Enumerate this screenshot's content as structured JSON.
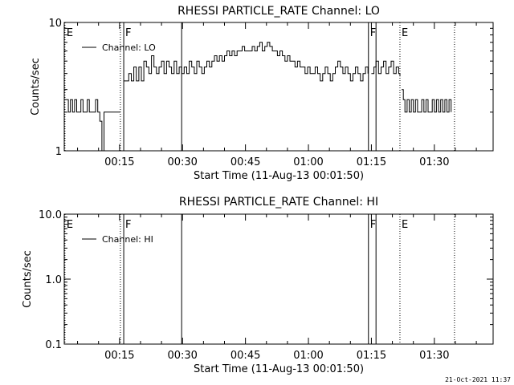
{
  "timestamp": "21-Oct-2021 11:37",
  "chart_data": [
    {
      "type": "line",
      "title": "RHESSI PARTICLE_RATE Channel: LO",
      "xlabel": "Start Time (11-Aug-13 00:01:50)",
      "ylabel": "Counts/sec",
      "yscale": "log",
      "ylim": [
        1,
        10
      ],
      "xlim_minutes": [
        1.83,
        104
      ],
      "xtick_minutes": [
        15,
        30,
        45,
        60,
        75,
        90
      ],
      "xtick_labels": [
        "00:15",
        "00:30",
        "00:45",
        "01:00",
        "01:15",
        "01:30"
      ],
      "ytick_values": [
        1,
        10
      ],
      "ytick_labels": [
        "1",
        "10"
      ],
      "legend": {
        "label": "Channel: LO",
        "position": "top-left"
      },
      "markers": [
        {
          "minute": 2.0,
          "label": "E",
          "style": "dotted"
        },
        {
          "minute": 15.2,
          "label": "",
          "style": "dotted"
        },
        {
          "minute": 16.0,
          "label": "F",
          "style": "solid"
        },
        {
          "minute": 29.8,
          "label": "",
          "style": "solid"
        },
        {
          "minute": 74.3,
          "label": "F",
          "style": "solid"
        },
        {
          "minute": 76.1,
          "label": "",
          "style": "solid"
        },
        {
          "minute": 81.8,
          "label": "E",
          "style": "dotted"
        },
        {
          "minute": 94.8,
          "label": "",
          "style": "dotted"
        }
      ],
      "series": [
        {
          "segments": [
            {
              "x": [
                1.83,
                2.3,
                2.8,
                3.3,
                3.8,
                4.3,
                4.8,
                5.3,
                5.8,
                6.3,
                6.8,
                7.3,
                7.8,
                8.3,
                8.8,
                9.3,
                9.8,
                10.3,
                10.8,
                11.3,
                11.8,
                12.3,
                12.8,
                13.3,
                13.8,
                14.3,
                14.8,
                15.2
              ],
              "y": [
                2.5,
                2.5,
                2.0,
                2.5,
                2.0,
                2.5,
                2.0,
                2.0,
                2.5,
                2.0,
                2.0,
                2.5,
                2.0,
                2.0,
                2.0,
                2.5,
                2.0,
                1.7,
                1.0,
                2.0,
                2.0,
                2.0,
                2.0,
                2.0,
                2.0,
                2.0,
                2.0,
                2.0
              ]
            },
            {
              "x": [
                16.0,
                16.6,
                17.2,
                17.8,
                18.4,
                19.0,
                19.6,
                20.2,
                20.8,
                21.4,
                22.0,
                22.6,
                23.2,
                23.8,
                24.4,
                25.0,
                25.6,
                26.2,
                26.8,
                27.4,
                28.0,
                28.6,
                29.2,
                29.8,
                30.4,
                31.0,
                31.6,
                32.2,
                32.8,
                33.4,
                34.0,
                34.6,
                35.2,
                35.8,
                36.4,
                37.0,
                37.6,
                38.2,
                38.8,
                39.4,
                40.0,
                40.6,
                41.2,
                41.8,
                42.4,
                43.0,
                43.6,
                44.2,
                44.8,
                45.4,
                46.0,
                46.6,
                47.2,
                47.8,
                48.4,
                49.0,
                49.6,
                50.2,
                50.8,
                51.4,
                52.0,
                52.6,
                53.2,
                53.8,
                54.4,
                55.0,
                55.6,
                56.2,
                56.8,
                57.4,
                58.0,
                58.6,
                59.2,
                59.8,
                60.4,
                61.0,
                61.6,
                62.2,
                62.8,
                63.4,
                64.0,
                64.6,
                65.2,
                65.8,
                66.4,
                67.0,
                67.6,
                68.2,
                68.8,
                69.4,
                70.0,
                70.6,
                71.2,
                71.8,
                72.4,
                73.0,
                73.6,
                74.2
              ],
              "y": [
                3.5,
                3.5,
                4.0,
                3.5,
                4.5,
                3.5,
                4.5,
                3.5,
                5.0,
                4.5,
                4.0,
                5.5,
                4.5,
                4.0,
                4.5,
                5.0,
                4.0,
                5.0,
                4.5,
                4.0,
                5.0,
                4.0,
                4.5,
                4.0,
                4.5,
                4.0,
                5.0,
                4.5,
                4.0,
                5.0,
                4.5,
                4.0,
                4.5,
                5.0,
                4.5,
                5.0,
                5.5,
                5.0,
                5.5,
                5.0,
                5.5,
                6.0,
                5.5,
                6.0,
                5.5,
                6.0,
                6.0,
                6.5,
                6.0,
                6.0,
                6.0,
                6.5,
                6.0,
                6.5,
                7.0,
                6.0,
                6.5,
                7.0,
                6.5,
                6.0,
                6.0,
                5.5,
                6.0,
                5.5,
                5.0,
                5.5,
                5.0,
                5.0,
                4.5,
                5.0,
                4.5,
                4.5,
                4.0,
                4.5,
                4.0,
                4.0,
                4.5,
                4.0,
                3.5,
                4.0,
                4.5,
                4.0,
                3.5,
                4.0,
                4.5,
                5.0,
                4.5,
                4.0,
                4.5,
                4.0,
                3.5,
                4.0,
                4.5,
                4.0,
                3.5,
                4.0,
                4.5,
                4.0
              ]
            },
            {
              "x": [
                75.0,
                75.6,
                76.1,
                76.7,
                77.3,
                77.9,
                78.5,
                79.1,
                79.7,
                80.3,
                80.9,
                81.5,
                81.8
              ],
              "y": [
                4.0,
                4.5,
                5.0,
                4.0,
                4.5,
                5.0,
                4.0,
                4.5,
                5.0,
                4.0,
                4.5,
                4.0,
                3.8
              ]
            },
            {
              "x": [
                82.2,
                82.6,
                83.0,
                83.5,
                84.0,
                84.5,
                85.0,
                85.5,
                86.0,
                86.5,
                87.0,
                87.5,
                88.0,
                88.5,
                89.0,
                89.5,
                90.0,
                90.5,
                91.0,
                91.5,
                92.0,
                92.5,
                93.0,
                93.5,
                94.0
              ],
              "y": [
                3.0,
                2.5,
                2.0,
                2.5,
                2.0,
                2.5,
                2.0,
                2.5,
                2.0,
                2.0,
                2.5,
                2.0,
                2.5,
                2.0,
                2.0,
                2.5,
                2.0,
                2.5,
                2.0,
                2.5,
                2.0,
                2.5,
                2.0,
                2.5,
                2.0
              ]
            }
          ]
        }
      ]
    },
    {
      "type": "line",
      "title": "RHESSI PARTICLE_RATE Channel: HI",
      "xlabel": "Start Time (11-Aug-13 00:01:50)",
      "ylabel": "Counts/sec",
      "yscale": "log",
      "ylim": [
        0.1,
        10
      ],
      "xlim_minutes": [
        1.83,
        104
      ],
      "xtick_minutes": [
        15,
        30,
        45,
        60,
        75,
        90
      ],
      "xtick_labels": [
        "00:15",
        "00:30",
        "00:45",
        "01:00",
        "01:15",
        "01:30"
      ],
      "ytick_values": [
        0.1,
        1,
        10
      ],
      "ytick_labels": [
        "0.1",
        "1.0",
        "10.0"
      ],
      "legend": {
        "label": "Channel: HI",
        "position": "top-left"
      },
      "markers": [
        {
          "minute": 2.0,
          "label": "E",
          "style": "dotted"
        },
        {
          "minute": 15.2,
          "label": "",
          "style": "dotted"
        },
        {
          "minute": 16.0,
          "label": "F",
          "style": "solid"
        },
        {
          "minute": 29.8,
          "label": "",
          "style": "solid"
        },
        {
          "minute": 74.3,
          "label": "F",
          "style": "solid"
        },
        {
          "minute": 76.1,
          "label": "",
          "style": "solid"
        },
        {
          "minute": 81.8,
          "label": "E",
          "style": "dotted"
        },
        {
          "minute": 94.8,
          "label": "",
          "style": "dotted"
        }
      ],
      "series": [
        {
          "segments": []
        }
      ]
    }
  ]
}
